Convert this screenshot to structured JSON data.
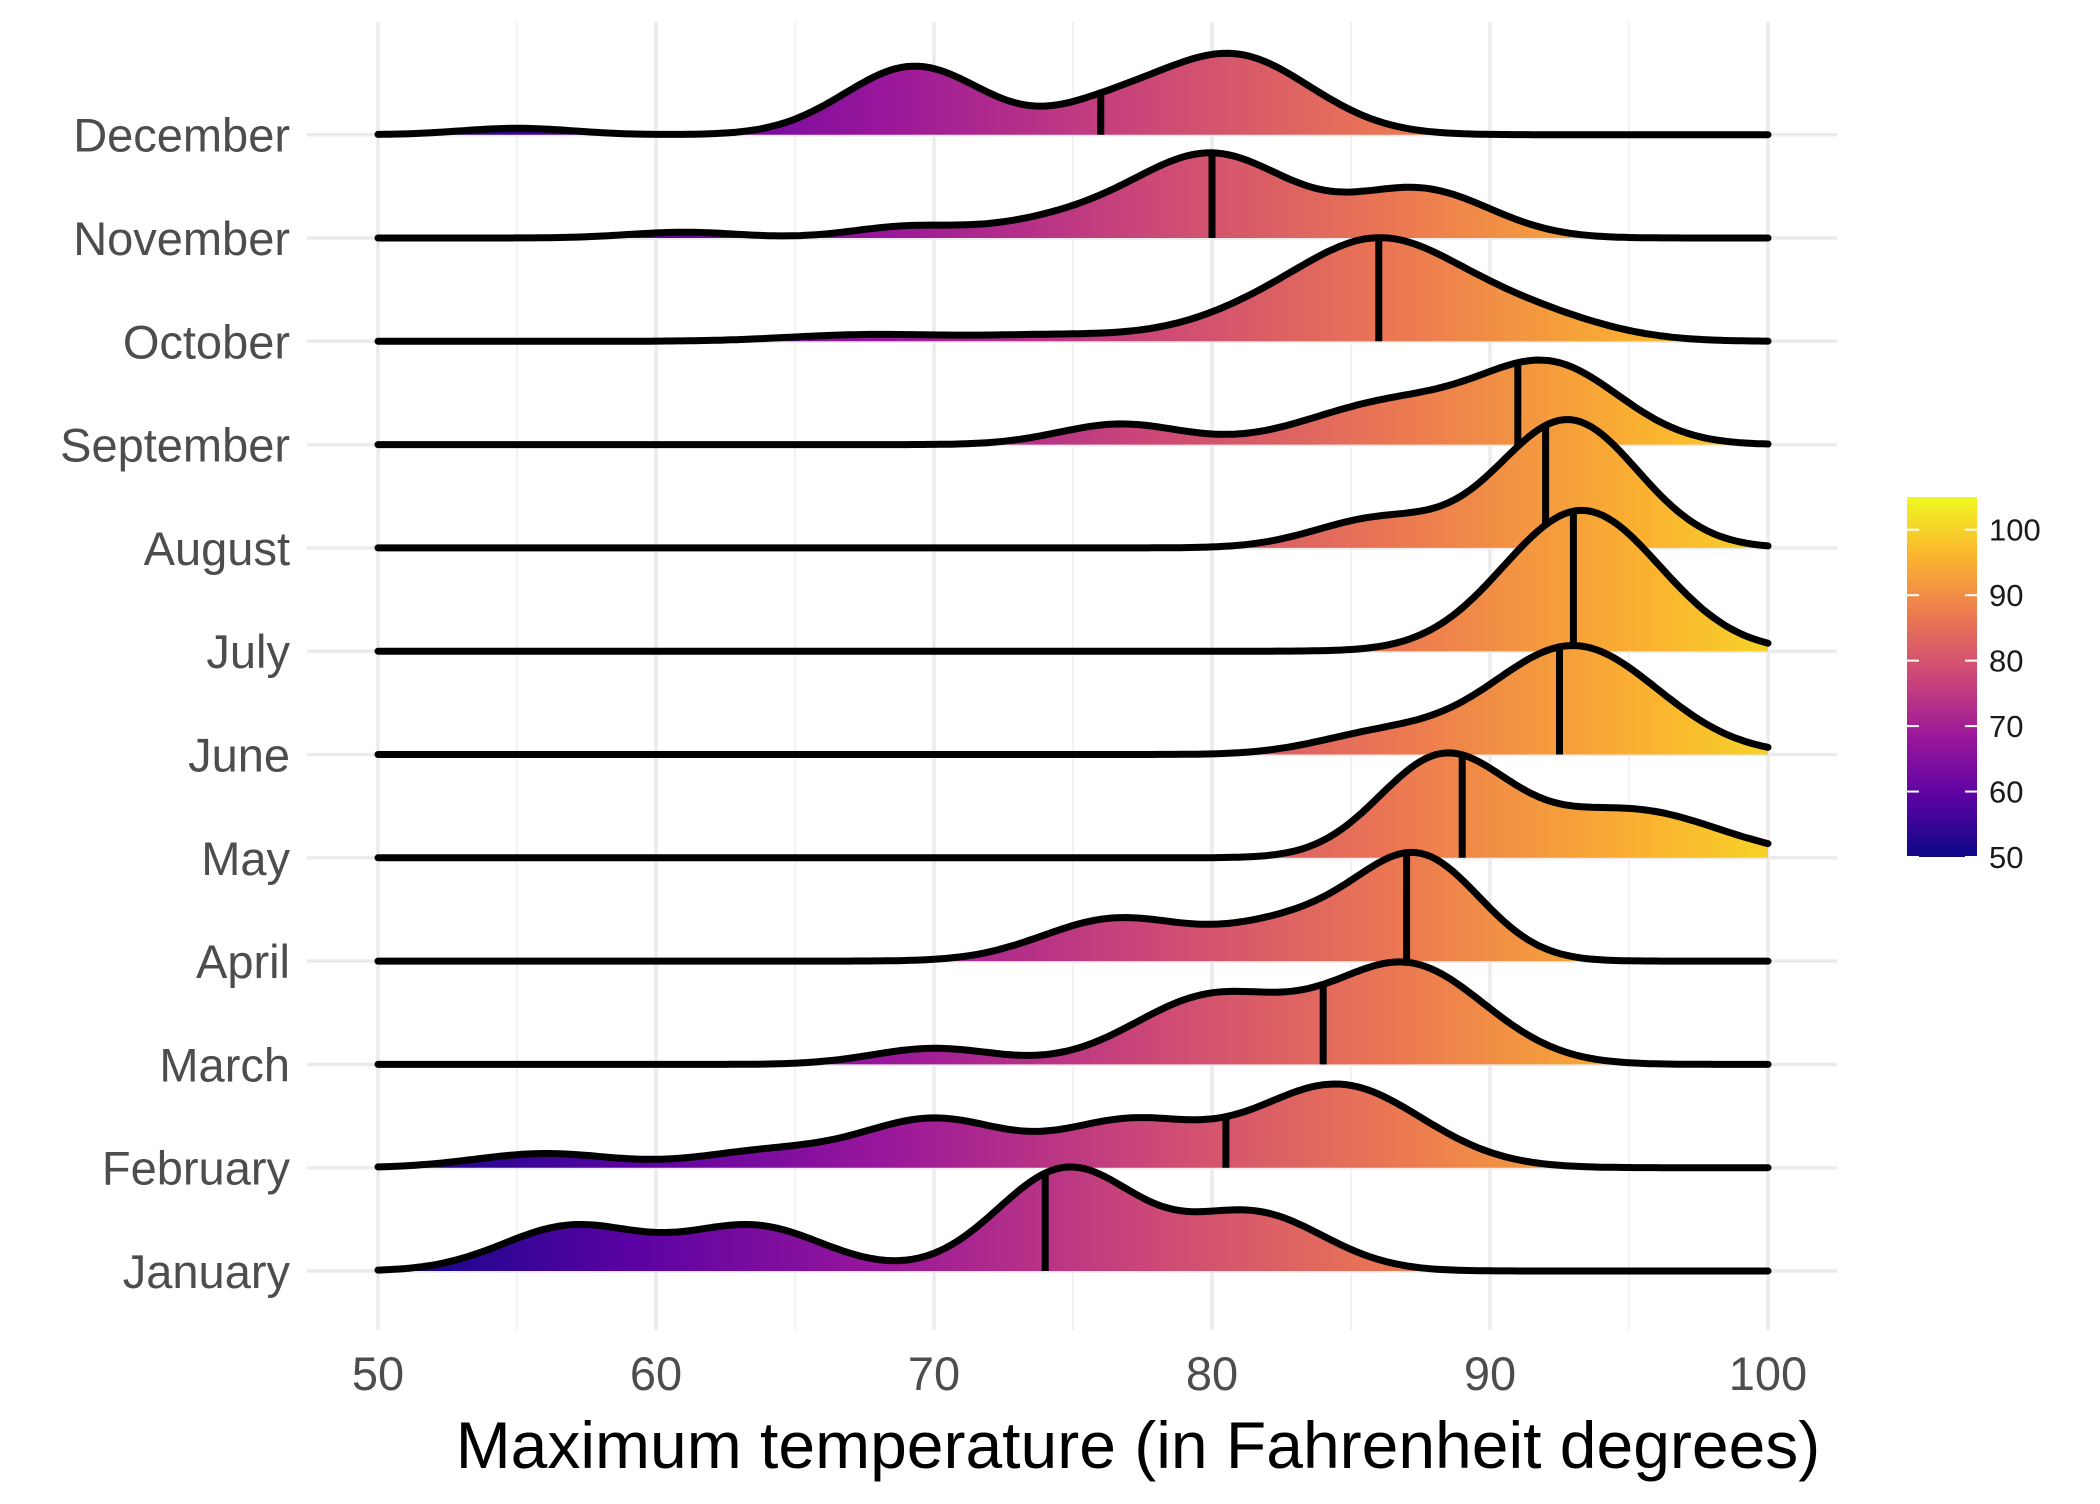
{
  "chart_data": {
    "type": "ridgeline",
    "xlabel": "Maximum temperature (in Fahrenheit degrees)",
    "ylabel": "",
    "xlim": [
      50,
      100
    ],
    "x_ticks": [
      50,
      60,
      70,
      80,
      90,
      100
    ],
    "fill_colormap": "plasma",
    "colormap_stops": [
      "#0d0887",
      "#5b02a3",
      "#9a179b",
      "#cb4678",
      "#eb7852",
      "#fbb32f",
      "#eff821"
    ],
    "legend": {
      "position": "right",
      "title": "",
      "range": [
        50,
        105
      ],
      "ticks": [
        50,
        60,
        70,
        80,
        90,
        100
      ]
    },
    "series": [
      {
        "name": "January",
        "median": 74,
        "components": [
          [
            57,
            2.5,
            0.7
          ],
          [
            63.5,
            2.5,
            0.7
          ],
          [
            74.8,
            2.5,
            1.6
          ],
          [
            81.5,
            2.5,
            0.9
          ]
        ]
      },
      {
        "name": "February",
        "median": 80.5,
        "components": [
          [
            56,
            2.5,
            0.22
          ],
          [
            64,
            2.5,
            0.25
          ],
          [
            70,
            2.6,
            0.75
          ],
          [
            77,
            2.5,
            0.7
          ],
          [
            84.5,
            3.0,
            1.3
          ]
        ]
      },
      {
        "name": "March",
        "median": 84,
        "components": [
          [
            70,
            2.2,
            0.25
          ],
          [
            80,
            2.8,
            1.05
          ],
          [
            87,
            2.8,
            1.55
          ]
        ]
      },
      {
        "name": "April",
        "median": 87,
        "components": [
          [
            76.5,
            2.6,
            0.65
          ],
          [
            83,
            2.6,
            0.6
          ],
          [
            87.5,
            2.2,
            1.55
          ]
        ]
      },
      {
        "name": "May",
        "median": 89,
        "components": [
          [
            88.3,
            2.3,
            1.55
          ],
          [
            95,
            3.2,
            0.75
          ]
        ]
      },
      {
        "name": "June",
        "median": 92.5,
        "components": [
          [
            86,
            2.3,
            0.3
          ],
          [
            93,
            3.0,
            1.7
          ]
        ]
      },
      {
        "name": "July",
        "median": 93,
        "components": [
          [
            93.3,
            2.8,
            2.2
          ]
        ]
      },
      {
        "name": "August",
        "median": 92,
        "components": [
          [
            86,
            2.3,
            0.45
          ],
          [
            92.8,
            2.5,
            2.0
          ]
        ]
      },
      {
        "name": "September",
        "median": 91,
        "components": [
          [
            76.7,
            2.2,
            0.32
          ],
          [
            86.5,
            3.0,
            0.65
          ],
          [
            92.2,
            2.5,
            1.2
          ]
        ]
      },
      {
        "name": "October",
        "median": 86,
        "components": [
          [
            67.5,
            2.8,
            0.1
          ],
          [
            74.5,
            3.0,
            0.1
          ],
          [
            81.5,
            2.6,
            0.35
          ],
          [
            86,
            2.8,
            1.45
          ],
          [
            91,
            2.8,
            0.45
          ]
        ]
      },
      {
        "name": "November",
        "median": 80,
        "components": [
          [
            61,
            2.0,
            0.09
          ],
          [
            69,
            2.0,
            0.17
          ],
          [
            74.5,
            2.5,
            0.25
          ],
          [
            80,
            2.8,
            1.3
          ],
          [
            87.5,
            2.5,
            0.75
          ]
        ]
      },
      {
        "name": "December",
        "median": 76,
        "components": [
          [
            55,
            2.0,
            0.1
          ],
          [
            69.3,
            2.5,
            1.07
          ],
          [
            76,
            2.0,
            0.32
          ],
          [
            80.7,
            2.8,
            1.25
          ]
        ]
      }
    ]
  }
}
